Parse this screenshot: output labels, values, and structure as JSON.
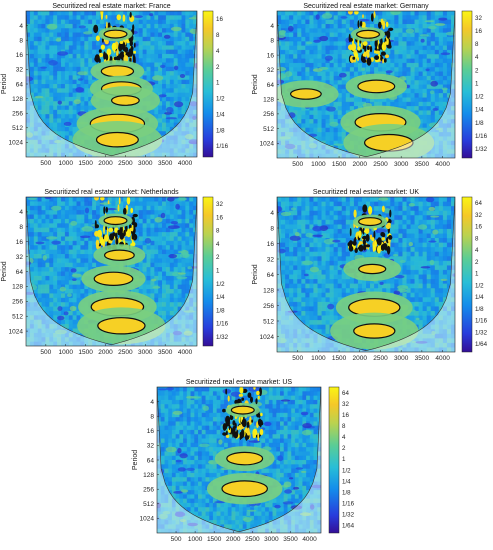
{
  "chart_data": [
    {
      "type": "heatmap",
      "title": "Securitized real estate market: France",
      "ylabel": "Period",
      "xticks": [
        500,
        1000,
        1500,
        2000,
        2500,
        3000,
        3500,
        4000
      ],
      "yticks": [
        "4",
        "8",
        "16",
        "32",
        "64",
        "128",
        "256",
        "512",
        "1024"
      ],
      "colorbar_ticks": [
        "16",
        "8",
        "4",
        "2",
        "1",
        "1/2",
        "1/4",
        "1/8",
        "1/16"
      ],
      "xlim": [
        1,
        4300
      ],
      "ylim_period": [
        2,
        2048
      ],
      "hotspots": [
        {
          "t": 2250,
          "p": 6,
          "amp": 1.0
        },
        {
          "t": 2300,
          "p": 35,
          "amp": 0.9
        },
        {
          "t": 2400,
          "p": 80,
          "amp": 0.95
        },
        {
          "t": 2500,
          "p": 140,
          "amp": 0.6
        },
        {
          "t": 2300,
          "p": 420,
          "amp": 1.0
        },
        {
          "t": 2300,
          "p": 900,
          "amp": 0.7
        }
      ]
    },
    {
      "type": "heatmap",
      "title": "Securitized real estate market: Germany",
      "ylabel": "Period",
      "xticks": [
        500,
        1000,
        1500,
        2000,
        2500,
        3000,
        3500,
        4000
      ],
      "yticks": [
        "4",
        "8",
        "16",
        "32",
        "64",
        "128",
        "256",
        "512",
        "1024"
      ],
      "colorbar_ticks": [
        "32",
        "16",
        "8",
        "4",
        "2",
        "1",
        "1/2",
        "1/4",
        "1/8",
        "1/16",
        "1/32"
      ],
      "xlim": [
        1,
        4300
      ],
      "ylim_period": [
        2,
        2048
      ],
      "hotspots": [
        {
          "t": 2200,
          "p": 6,
          "amp": 1.0
        },
        {
          "t": 2400,
          "p": 70,
          "amp": 0.9
        },
        {
          "t": 700,
          "p": 100,
          "amp": 0.7
        },
        {
          "t": 2500,
          "p": 380,
          "amp": 0.95
        },
        {
          "t": 2700,
          "p": 1000,
          "amp": 0.8
        }
      ]
    },
    {
      "type": "heatmap",
      "title": "Securitized real estate market: Netherlands",
      "ylabel": "Period",
      "xticks": [
        500,
        1000,
        1500,
        2000,
        2500,
        3000,
        3500,
        4000
      ],
      "yticks": [
        "4",
        "8",
        "16",
        "32",
        "64",
        "128",
        "256",
        "512",
        "1024"
      ],
      "colorbar_ticks": [
        "32",
        "16",
        "8",
        "4",
        "2",
        "1",
        "1/2",
        "1/4",
        "1/8",
        "1/16",
        "1/32"
      ],
      "xlim": [
        1,
        4300
      ],
      "ylim_period": [
        2,
        2048
      ],
      "hotspots": [
        {
          "t": 2250,
          "p": 6,
          "amp": 1.0
        },
        {
          "t": 2350,
          "p": 30,
          "amp": 0.85
        },
        {
          "t": 2200,
          "p": 90,
          "amp": 0.9
        },
        {
          "t": 2300,
          "p": 330,
          "amp": 1.0
        },
        {
          "t": 2400,
          "p": 800,
          "amp": 0.8
        }
      ]
    },
    {
      "type": "heatmap",
      "title": "Securitized real estate market: UK",
      "ylabel": "Period",
      "xticks": [
        500,
        1000,
        1500,
        2000,
        2500,
        3000,
        3500,
        4000
      ],
      "yticks": [
        "4",
        "8",
        "16",
        "32",
        "64",
        "128",
        "256",
        "512",
        "1024"
      ],
      "colorbar_ticks": [
        "64",
        "32",
        "16",
        "8",
        "4",
        "2",
        "1",
        "1/2",
        "1/4",
        "1/8",
        "1/16",
        "1/32",
        "1/64"
      ],
      "xlim": [
        1,
        4300
      ],
      "ylim_period": [
        2,
        2048
      ],
      "hotspots": [
        {
          "t": 2250,
          "p": 6,
          "amp": 1.0
        },
        {
          "t": 2300,
          "p": 50,
          "amp": 0.7
        },
        {
          "t": 2350,
          "p": 280,
          "amp": 1.0
        },
        {
          "t": 2350,
          "p": 800,
          "amp": 0.7
        }
      ]
    },
    {
      "type": "heatmap",
      "title": "Securitized real estate market: US",
      "ylabel": "Period",
      "xticks": [
        500,
        1000,
        1500,
        2000,
        2500,
        3000,
        3500,
        4000
      ],
      "yticks": [
        "4",
        "8",
        "16",
        "32",
        "64",
        "128",
        "256",
        "512",
        "1024"
      ],
      "colorbar_ticks": [
        "64",
        "32",
        "16",
        "8",
        "4",
        "2",
        "1",
        "1/2",
        "1/4",
        "1/8",
        "1/16",
        "1/32",
        "1/64"
      ],
      "xlim": [
        1,
        4300
      ],
      "ylim_period": [
        2,
        2048
      ],
      "hotspots": [
        {
          "t": 2250,
          "p": 6,
          "amp": 1.0
        },
        {
          "t": 2300,
          "p": 60,
          "amp": 0.9
        },
        {
          "t": 2300,
          "p": 250,
          "amp": 0.9
        }
      ]
    }
  ]
}
